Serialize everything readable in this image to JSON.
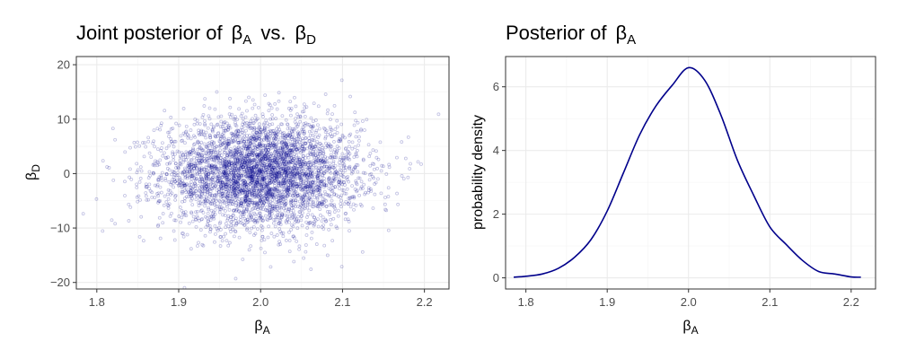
{
  "chart_data": [
    {
      "type": "scatter",
      "title_prefix": "Joint posterior of",
      "title_sym1": "β",
      "title_sub1": "A",
      "title_mid": "vs.",
      "title_sym2": "β",
      "title_sub2": "D",
      "xlabel_sym": "β",
      "xlabel_sub": "A",
      "ylabel_sym": "β",
      "ylabel_sub": "D",
      "xlim": [
        1.775,
        2.23
      ],
      "ylim": [
        -21.2,
        21.5
      ],
      "xticks": [
        1.8,
        1.9,
        2.0,
        2.1,
        2.2
      ],
      "xtick_labels": [
        "1.8",
        "1.9",
        "2.0",
        "2.1",
        "2.2"
      ],
      "yticks": [
        -20,
        -10,
        0,
        10,
        20
      ],
      "ytick_labels": [
        "−20",
        "−10",
        "0",
        "10",
        "20"
      ],
      "grid": true,
      "point_color": "#00008b",
      "point_alpha": 0.25,
      "distribution": {
        "x_mean": 2.0,
        "x_sd": 0.06,
        "y_mean": 0,
        "y_sd": 5,
        "n": 4000
      }
    },
    {
      "type": "line",
      "title_prefix": "Posterior of",
      "title_sym": "β",
      "title_sub": "A",
      "xlabel_sym": "β",
      "xlabel_sub": "A",
      "ylabel": "probability density",
      "xlim": [
        1.775,
        2.23
      ],
      "ylim": [
        -0.35,
        6.95
      ],
      "xticks": [
        1.8,
        1.9,
        2.0,
        2.1,
        2.2
      ],
      "xtick_labels": [
        "1.8",
        "1.9",
        "2.0",
        "2.1",
        "2.2"
      ],
      "yticks": [
        0,
        2,
        4,
        6
      ],
      "ytick_labels": [
        "0",
        "2",
        "4",
        "6"
      ],
      "grid": true,
      "line_color": "#00008b",
      "x": [
        1.785,
        1.8,
        1.82,
        1.84,
        1.86,
        1.88,
        1.9,
        1.92,
        1.94,
        1.96,
        1.98,
        2.0,
        2.02,
        2.04,
        2.06,
        2.08,
        2.1,
        2.12,
        2.14,
        2.16,
        2.18,
        2.2,
        2.212
      ],
      "y": [
        0.02,
        0.05,
        0.12,
        0.3,
        0.65,
        1.2,
        2.1,
        3.3,
        4.5,
        5.4,
        6.05,
        6.6,
        6.2,
        5.1,
        3.7,
        2.6,
        1.6,
        1.05,
        0.55,
        0.2,
        0.12,
        0.03,
        0.02
      ]
    }
  ]
}
